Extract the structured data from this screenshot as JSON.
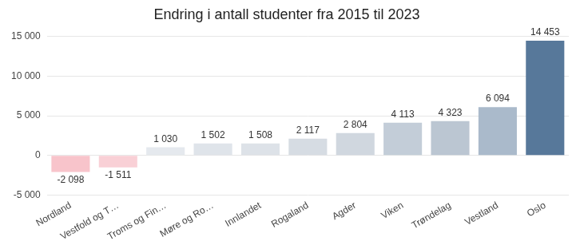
{
  "chart_data": {
    "type": "bar",
    "title": "Endring i antall studenter fra 2015 til 2023",
    "categories": [
      "Nordland",
      "Vestfold og T…",
      "Troms og Fin…",
      "Møre og Ro…",
      "Innlandet",
      "Rogaland",
      "Agder",
      "Viken",
      "Trøndelag",
      "Vestland",
      "Oslo"
    ],
    "values": [
      -2098,
      -1511,
      1030,
      1502,
      1508,
      2117,
      2804,
      4113,
      4323,
      6094,
      14453
    ],
    "value_labels": [
      "-2 098",
      "-1 511",
      "1 030",
      "1 502",
      "1 508",
      "2 117",
      "2 804",
      "4 113",
      "4 323",
      "6 094",
      "14 453"
    ],
    "colors": [
      "#f8c4cb",
      "#f9d0d6",
      "#e5e9ee",
      "#dfe4ea",
      "#dde2e8",
      "#d6dce3",
      "#d0d7df",
      "#c3cdd8",
      "#bbc6d2",
      "#aabacb",
      "#57789a"
    ],
    "ylim": [
      -5000,
      15000
    ],
    "yticks": [
      {
        "value": -5000,
        "label": "-5 000"
      },
      0,
      {
        "value": 5000,
        "label": "5 000"
      },
      {
        "value": 10000,
        "label": "10 000"
      },
      {
        "value": 15000,
        "label": "15 000"
      }
    ],
    "grid": true,
    "data_labels": true
  }
}
